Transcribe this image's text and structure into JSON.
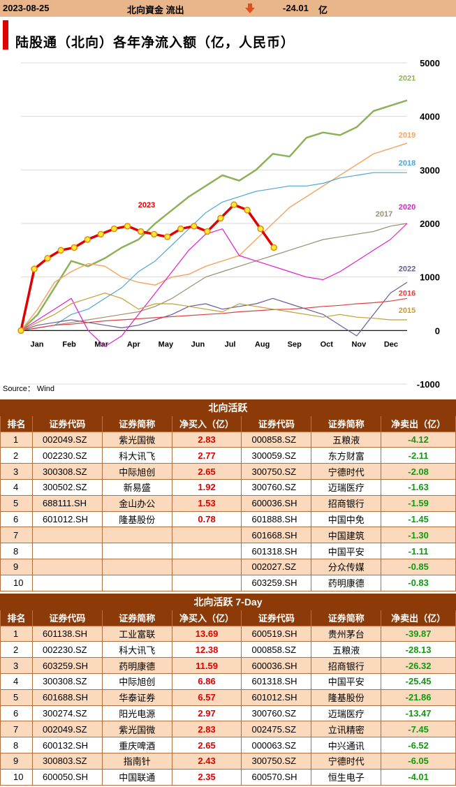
{
  "topbar": {
    "date": "2023-08-25",
    "label": "北向資金 流出",
    "value": "-24.01",
    "unit": "亿",
    "arrow_color": "#e0501c"
  },
  "chart_title": "陆股通（北向）各年净流入额（亿，人民币）",
  "source": "Source： Wind",
  "chart_data": {
    "type": "line",
    "title": "陆股通（北向）各年净流入额（亿，人民币）",
    "x_labels": [
      "Jan",
      "Feb",
      "Mar",
      "Apr",
      "May",
      "Jun",
      "Jul",
      "Aug",
      "Sep",
      "Oct",
      "Nov",
      "Dec"
    ],
    "y_ticks": [
      5000,
      4000,
      3000,
      2000,
      1000,
      0,
      -1000
    ],
    "ylim": [
      -1000,
      5000
    ],
    "series": [
      {
        "name": "2021",
        "color": "#8db158",
        "width": 2.5,
        "values": [
          0,
          300,
          800,
          1300,
          1200,
          1350,
          1550,
          1700,
          2000,
          2250,
          2500,
          2700,
          2900,
          2800,
          3000,
          3300,
          3250,
          3600,
          3700,
          3650,
          3800,
          4100,
          4200,
          4300
        ]
      },
      {
        "name": "2019",
        "color": "#f5a665",
        "width": 1.5,
        "values": [
          0,
          400,
          900,
          1100,
          1250,
          1200,
          1000,
          900,
          850,
          1000,
          1050,
          1200,
          1300,
          1400,
          1700,
          2000,
          2300,
          2500,
          2700,
          2900,
          3100,
          3300,
          3400,
          3500
        ]
      },
      {
        "name": "2018",
        "color": "#4fa6d0",
        "width": 1.2,
        "values": [
          0,
          50,
          100,
          300,
          400,
          600,
          800,
          1100,
          1300,
          1600,
          1900,
          2200,
          2400,
          2500,
          2600,
          2650,
          2700,
          2700,
          2750,
          2850,
          2900,
          2950,
          2950,
          2950
        ]
      },
      {
        "name": "2017",
        "color": "#9b8f72",
        "width": 1.2,
        "values": [
          0,
          50,
          100,
          150,
          200,
          250,
          300,
          350,
          450,
          600,
          800,
          1000,
          1100,
          1200,
          1300,
          1400,
          1500,
          1600,
          1700,
          1750,
          1800,
          1850,
          1950,
          2000
        ]
      },
      {
        "name": "2020",
        "color": "#e020d0",
        "width": 1.2,
        "values": [
          0,
          200,
          400,
          600,
          0,
          -300,
          -100,
          300,
          700,
          1100,
          1500,
          1800,
          1900,
          1400,
          1300,
          1200,
          1100,
          1000,
          950,
          1100,
          1300,
          1500,
          1700,
          2000
        ]
      },
      {
        "name": "2022",
        "color": "#6a5a9a",
        "width": 1.2,
        "values": [
          0,
          100,
          150,
          200,
          150,
          100,
          50,
          100,
          200,
          300,
          450,
          500,
          400,
          450,
          500,
          600,
          500,
          400,
          300,
          100,
          -100,
          300,
          700,
          900
        ]
      },
      {
        "name": "2016",
        "color": "#e04040",
        "width": 1.2,
        "values": [
          0,
          50,
          100,
          120,
          150,
          180,
          200,
          220,
          240,
          260,
          280,
          300,
          320,
          350,
          370,
          390,
          400,
          420,
          450,
          470,
          500,
          520,
          550,
          600
        ]
      },
      {
        "name": "2015",
        "color": "#c0a030",
        "width": 1.2,
        "values": [
          0,
          150,
          300,
          500,
          600,
          700,
          600,
          400,
          500,
          500,
          450,
          400,
          350,
          500,
          450,
          400,
          350,
          300,
          250,
          300,
          250,
          230,
          200,
          200
        ]
      },
      {
        "name": "2023",
        "color": "#e00000",
        "width": 3.5,
        "markers": true,
        "values": [
          0,
          1150,
          1350,
          1500,
          1550,
          1700,
          1800,
          1900,
          1950,
          1850,
          1800,
          1750,
          1900,
          1950,
          1850,
          2100,
          2350,
          2250,
          1900,
          1550
        ]
      }
    ]
  },
  "panel1": {
    "title": "北向活跃",
    "headers": [
      "排名",
      "证券代码",
      "证券简称",
      "净买入（亿）",
      "证券代码",
      "证券简称",
      "净卖出（亿）"
    ],
    "rows": [
      [
        "1",
        "002049.SZ",
        "紫光国微",
        "2.83",
        "000858.SZ",
        "五粮液",
        "-4.12"
      ],
      [
        "2",
        "002230.SZ",
        "科大讯飞",
        "2.77",
        "300059.SZ",
        "东方财富",
        "-2.11"
      ],
      [
        "3",
        "300308.SZ",
        "中际旭创",
        "2.65",
        "300750.SZ",
        "宁德时代",
        "-2.08"
      ],
      [
        "4",
        "300502.SZ",
        "新易盛",
        "1.92",
        "300760.SZ",
        "迈瑞医疗",
        "-1.63"
      ],
      [
        "5",
        "688111.SH",
        "金山办公",
        "1.53",
        "600036.SH",
        "招商银行",
        "-1.59"
      ],
      [
        "6",
        "601012.SH",
        "隆基股份",
        "0.78",
        "601888.SH",
        "中国中免",
        "-1.45"
      ],
      [
        "7",
        "",
        "",
        "",
        "601668.SH",
        "中国建筑",
        "-1.30"
      ],
      [
        "8",
        "",
        "",
        "",
        "601318.SH",
        "中国平安",
        "-1.11"
      ],
      [
        "9",
        "",
        "",
        "",
        "002027.SZ",
        "分众传媒",
        "-0.85"
      ],
      [
        "10",
        "",
        "",
        "",
        "603259.SH",
        "药明康德",
        "-0.83"
      ]
    ]
  },
  "panel2": {
    "title": "北向活跃 7-Day",
    "headers": [
      "排名",
      "证券代码",
      "证券简称",
      "净买入（亿）",
      "证券代码",
      "证券简称",
      "净卖出（亿）"
    ],
    "rows": [
      [
        "1",
        "601138.SH",
        "工业富联",
        "13.69",
        "600519.SH",
        "贵州茅台",
        "-39.87"
      ],
      [
        "2",
        "002230.SZ",
        "科大讯飞",
        "12.38",
        "000858.SZ",
        "五粮液",
        "-28.13"
      ],
      [
        "3",
        "603259.SH",
        "药明康德",
        "11.59",
        "600036.SH",
        "招商银行",
        "-26.32"
      ],
      [
        "4",
        "300308.SZ",
        "中际旭创",
        "6.86",
        "601318.SH",
        "中国平安",
        "-25.45"
      ],
      [
        "5",
        "601688.SH",
        "华泰证券",
        "6.57",
        "601012.SH",
        "隆基股份",
        "-21.86"
      ],
      [
        "6",
        "300274.SZ",
        "阳光电源",
        "2.97",
        "300760.SZ",
        "迈瑞医疗",
        "-13.47"
      ],
      [
        "7",
        "002049.SZ",
        "紫光国微",
        "2.83",
        "002475.SZ",
        "立讯精密",
        "-7.45"
      ],
      [
        "8",
        "600132.SH",
        "重庆啤酒",
        "2.65",
        "000063.SZ",
        "中兴通讯",
        "-6.52"
      ],
      [
        "9",
        "300803.SZ",
        "指南针",
        "2.43",
        "300750.SZ",
        "宁德时代",
        "-6.05"
      ],
      [
        "10",
        "600050.SH",
        "中国联通",
        "2.35",
        "600570.SH",
        "恒生电子",
        "-4.01"
      ]
    ]
  }
}
